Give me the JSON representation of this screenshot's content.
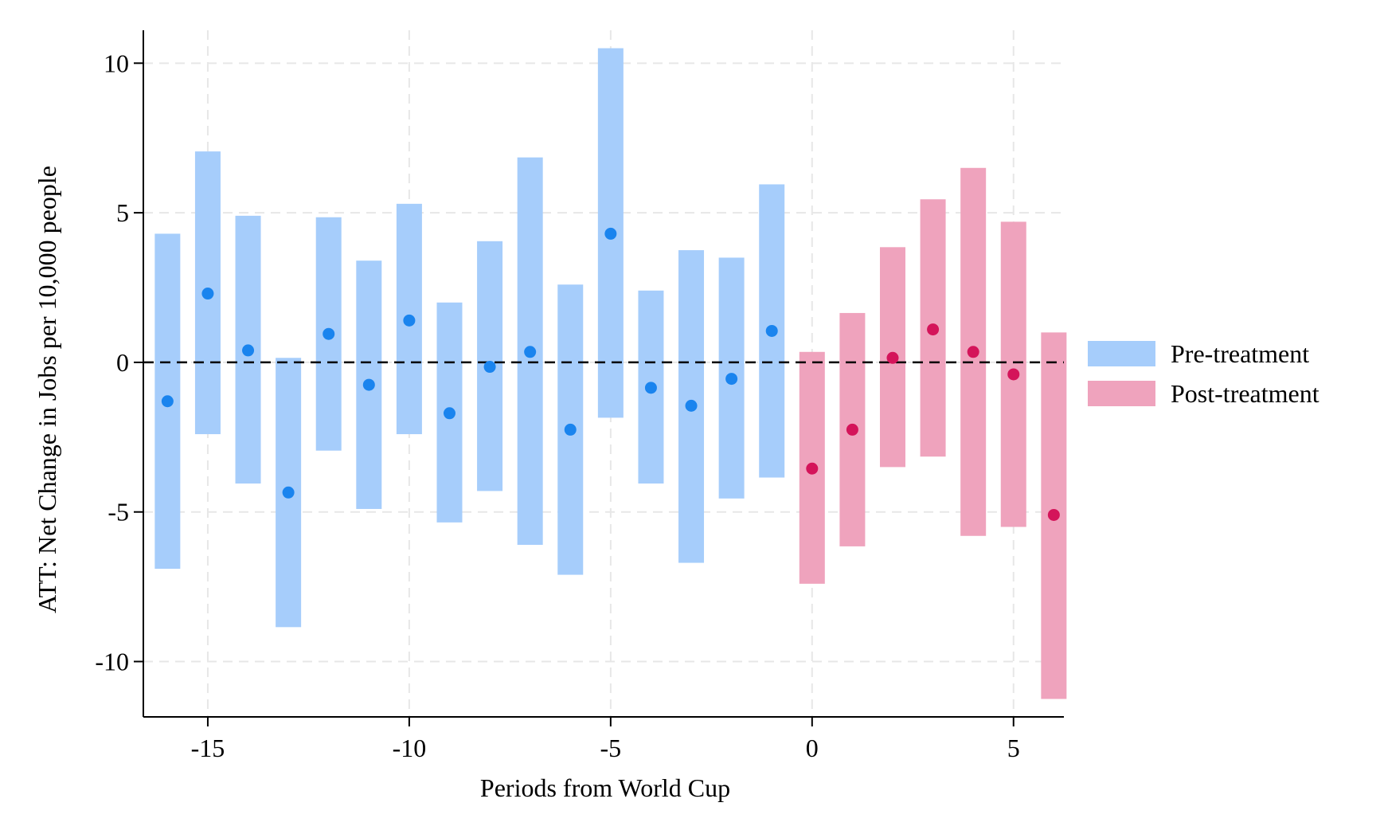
{
  "chart_data": {
    "type": "scatter",
    "xlabel": "Periods from World Cup",
    "ylabel": "ATT: Net Change in Jobs per 10,000 people",
    "xlim": [
      -16.6,
      6.25
    ],
    "ylim": [
      -11.85,
      11.1
    ],
    "xticks": [
      -15,
      -10,
      -5,
      0,
      5
    ],
    "yticks": [
      10,
      5,
      0,
      -5,
      -10
    ],
    "xtick_labels": [
      "-15",
      "-10",
      "-5",
      "0",
      "5"
    ],
    "ytick_labels": [
      "10",
      "5",
      "0",
      "-5",
      "-10"
    ],
    "grid": true,
    "reference_line": {
      "y": 0,
      "style": "dashed"
    },
    "legend_position": "right",
    "colors": {
      "pre_bar": "#a6cdfb",
      "pre_point": "#1a84ee",
      "post_bar": "#efa3bd",
      "post_point": "#d4145a"
    },
    "series": [
      {
        "name": "Pre-treatment",
        "points": [
          {
            "x": -16,
            "y": -1.3,
            "lo": -6.9,
            "hi": 4.3
          },
          {
            "x": -15,
            "y": 2.3,
            "lo": -2.4,
            "hi": 7.05
          },
          {
            "x": -14,
            "y": 0.4,
            "lo": -4.05,
            "hi": 4.9
          },
          {
            "x": -13,
            "y": -4.35,
            "lo": -8.85,
            "hi": 0.15
          },
          {
            "x": -12,
            "y": 0.95,
            "lo": -2.95,
            "hi": 4.85
          },
          {
            "x": -11,
            "y": -0.75,
            "lo": -4.9,
            "hi": 3.4
          },
          {
            "x": -10,
            "y": 1.4,
            "lo": -2.4,
            "hi": 5.3
          },
          {
            "x": -9,
            "y": -1.7,
            "lo": -5.35,
            "hi": 2.0
          },
          {
            "x": -8,
            "y": -0.15,
            "lo": -4.3,
            "hi": 4.05
          },
          {
            "x": -7,
            "y": 0.35,
            "lo": -6.1,
            "hi": 6.85
          },
          {
            "x": -6,
            "y": -2.25,
            "lo": -7.1,
            "hi": 2.6
          },
          {
            "x": -5,
            "y": 4.3,
            "lo": -1.85,
            "hi": 10.5
          },
          {
            "x": -4,
            "y": -0.85,
            "lo": -4.05,
            "hi": 2.4
          },
          {
            "x": -3,
            "y": -1.45,
            "lo": -6.7,
            "hi": 3.75
          },
          {
            "x": -2,
            "y": -0.55,
            "lo": -4.55,
            "hi": 3.5
          },
          {
            "x": -1,
            "y": 1.05,
            "lo": -3.85,
            "hi": 5.95
          }
        ]
      },
      {
        "name": "Post-treatment",
        "points": [
          {
            "x": 0,
            "y": -3.55,
            "lo": -7.4,
            "hi": 0.35
          },
          {
            "x": 1,
            "y": -2.25,
            "lo": -6.15,
            "hi": 1.65
          },
          {
            "x": 2,
            "y": 0.15,
            "lo": -3.5,
            "hi": 3.85
          },
          {
            "x": 3,
            "y": 1.1,
            "lo": -3.15,
            "hi": 5.45
          },
          {
            "x": 4,
            "y": 0.35,
            "lo": -5.8,
            "hi": 6.5
          },
          {
            "x": 5,
            "y": -0.4,
            "lo": -5.5,
            "hi": 4.7
          },
          {
            "x": 6,
            "y": -5.1,
            "lo": -11.25,
            "hi": 1.0
          }
        ]
      }
    ]
  }
}
